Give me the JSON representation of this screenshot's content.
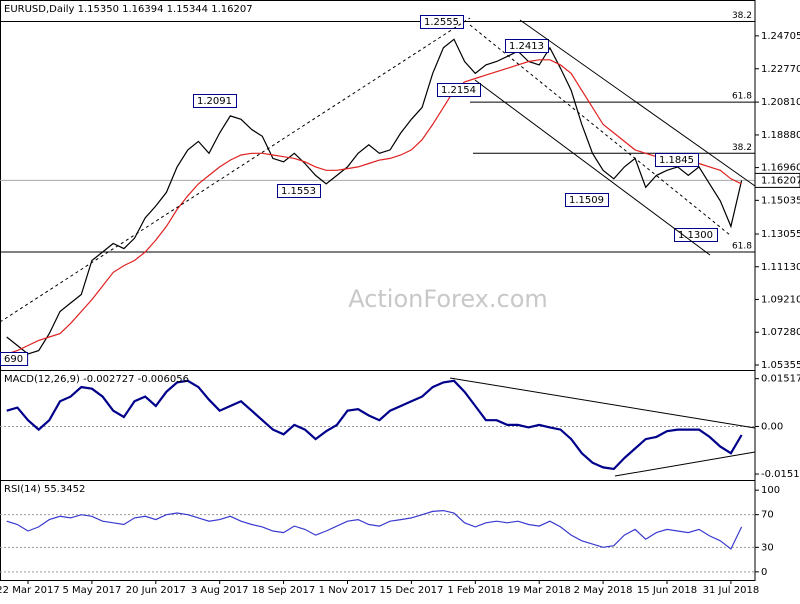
{
  "chart_data": [
    {
      "type": "line",
      "title": "EURUSD,Daily  1.15350 1.16394 1.15344 1.16207",
      "watermark": "ActionForex.com",
      "categories": [
        null,
        null,
        "22 Mar 2017",
        null,
        null,
        null,
        null,
        null,
        "5 May 2017",
        null,
        null,
        null,
        null,
        null,
        "20 Jun 2017",
        null,
        null,
        null,
        null,
        null,
        "3 Aug 2017",
        null,
        null,
        null,
        null,
        null,
        "18 Sep 2017",
        null,
        null,
        null,
        null,
        null,
        "1 Nov 2017",
        null,
        null,
        null,
        null,
        null,
        "15 Dec 2017",
        null,
        null,
        null,
        null,
        null,
        "1 Feb 2018",
        null,
        null,
        null,
        null,
        null,
        "19 Mar 2018",
        null,
        null,
        null,
        null,
        null,
        "2 May 2018",
        null,
        null,
        null,
        null,
        null,
        "15 Jun 2018",
        null,
        null,
        null,
        null,
        null,
        "31 Jul 2018",
        null
      ],
      "series": [
        {
          "color": "#000000",
          "values": [
            1.07,
            1.065,
            1.06,
            1.062,
            1.072,
            1.085,
            1.09,
            1.095,
            1.115,
            1.12,
            1.125,
            1.122,
            1.128,
            1.14,
            1.147,
            1.155,
            1.17,
            1.18,
            1.185,
            1.178,
            1.19,
            1.2,
            1.198,
            1.192,
            1.188,
            1.175,
            1.173,
            1.178,
            1.172,
            1.165,
            1.16,
            1.165,
            1.17,
            1.178,
            1.183,
            1.178,
            1.18,
            1.19,
            1.198,
            1.205,
            1.225,
            1.24,
            1.245,
            1.232,
            1.225,
            1.23,
            1.232,
            1.235,
            1.238,
            1.232,
            1.23,
            1.24,
            1.228,
            1.215,
            1.195,
            1.178,
            1.168,
            1.163,
            1.17,
            1.175,
            1.158,
            1.165,
            1.168,
            1.17,
            1.165,
            1.17,
            1.16,
            1.15,
            1.135,
            1.162
          ]
        },
        {
          "color": "#e02020",
          "values": [
            1.06,
            1.062,
            1.065,
            1.068,
            1.07,
            1.072,
            1.078,
            1.085,
            1.092,
            1.1,
            1.108,
            1.112,
            1.115,
            1.12,
            1.127,
            1.135,
            1.145,
            1.153,
            1.16,
            1.165,
            1.17,
            1.174,
            1.177,
            1.178,
            1.178,
            1.177,
            1.176,
            1.175,
            1.173,
            1.17,
            1.168,
            1.168,
            1.169,
            1.17,
            1.172,
            1.174,
            1.175,
            1.177,
            1.18,
            1.186,
            1.195,
            1.205,
            1.215,
            1.22,
            1.222,
            1.224,
            1.226,
            1.228,
            1.23,
            1.232,
            1.233,
            1.233,
            1.23,
            1.225,
            1.215,
            1.205,
            1.195,
            1.19,
            1.185,
            1.18,
            1.178,
            1.176,
            1.175,
            1.174,
            1.173,
            1.172,
            1.17,
            1.168,
            1.163,
            1.16
          ]
        }
      ],
      "ylim": [
        1.0506,
        1.2599
      ],
      "yticks": [
        1.24705,
        {
          "value": 1.2277,
          "label": "1.22770"
        },
        {
          "value": 1.2081,
          "label": "1.20810"
        },
        {
          "value": 1.1888,
          "label": "1.18880"
        },
        {
          "value": 1.1696,
          "label": "1.16960"
        },
        1.15035,
        1.13055,
        {
          "value": 1.1113,
          "label": "1.11130"
        },
        {
          "value": 1.0921,
          "label": "1.09210"
        },
        {
          "value": 1.0728,
          "label": "1.07280"
        },
        1.05355
      ],
      "last": 1.16207,
      "levels": [
        {
          "value": 1.2555,
          "label": "38.2"
        },
        {
          "value": 1.2081,
          "label": "61.8"
        },
        {
          "value": 1.178,
          "label": "38.2"
        },
        {
          "value": 1.12,
          "label": "61.8"
        }
      ],
      "annotations": [
        "1.2555",
        "1.2413",
        "1.2154",
        "1.2091",
        "1.1553",
        "1.1509",
        "1.1845",
        "1.1300",
        "690"
      ]
    },
    {
      "type": "line",
      "title": "MACD(12,26,9) -0.002727 -0.006056",
      "series": [
        {
          "color": "#00008b",
          "values": [
            0.005,
            0.006,
            0.002,
            -0.001,
            0.002,
            0.008,
            0.0095,
            0.0125,
            0.012,
            0.0095,
            0.005,
            0.003,
            0.008,
            0.0095,
            0.0065,
            0.011,
            0.014,
            0.0145,
            0.0125,
            0.0085,
            0.005,
            0.0065,
            0.008,
            0.005,
            0.002,
            -0.001,
            -0.0025,
            0.0005,
            -0.001,
            -0.004,
            -0.0015,
            0.0005,
            0.005,
            0.0055,
            0.0035,
            0.002,
            0.005,
            0.0065,
            0.008,
            0.0095,
            0.0125,
            0.014,
            0.0145,
            0.011,
            0.0065,
            0.002,
            0.002,
            0.0005,
            0.0005,
            -0.0003,
            0.0005,
            -0.0003,
            -0.001,
            -0.004,
            -0.0085,
            -0.0115,
            -0.013,
            -0.0135,
            -0.01,
            -0.007,
            -0.004,
            -0.0033,
            -0.0015,
            -0.001,
            -0.001,
            -0.001,
            -0.0033,
            -0.0064,
            -0.0085,
            -0.0027
          ]
        }
      ],
      "ylim": [
        -0.017,
        0.0173
      ],
      "yticks": [
        0.015176,
        {
          "value": 0,
          "label": "0.00"
        },
        -0.015105
      ]
    },
    {
      "type": "line",
      "title": "RSI(14) 55.3452",
      "series": [
        {
          "color": "#3a3ad0",
          "values": [
            62,
            58,
            50,
            55,
            64,
            68,
            66,
            70,
            68,
            62,
            60,
            58,
            66,
            68,
            64,
            70,
            72,
            70,
            66,
            62,
            64,
            68,
            62,
            58,
            55,
            50,
            48,
            56,
            52,
            45,
            50,
            56,
            62,
            64,
            58,
            56,
            62,
            64,
            66,
            70,
            74,
            75,
            72,
            60,
            55,
            60,
            62,
            60,
            62,
            58,
            56,
            62,
            55,
            45,
            38,
            34,
            30,
            32,
            45,
            52,
            40,
            48,
            52,
            50,
            48,
            52,
            44,
            38,
            28,
            55
          ]
        }
      ],
      "ylim": [
        -10,
        110
      ],
      "yticks": [
        100,
        70,
        30,
        0
      ]
    }
  ]
}
